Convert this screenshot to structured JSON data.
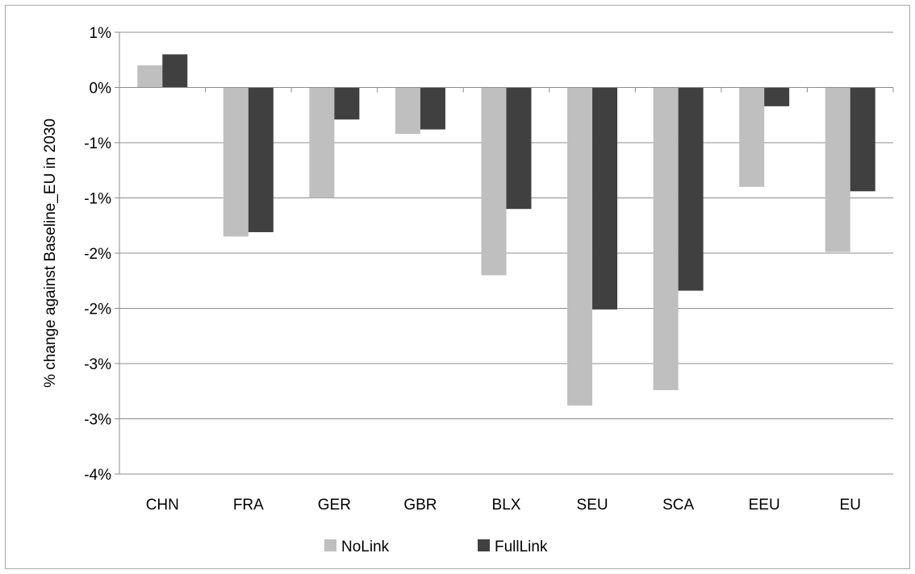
{
  "chart_data": {
    "type": "bar",
    "title": "",
    "xlabel": "",
    "ylabel": "% change against Baseline_EU in 2030",
    "categories": [
      "CHN",
      "FRA",
      "GER",
      "GBR",
      "BLX",
      "SEU",
      "SCA",
      "EEU",
      "EU"
    ],
    "series": [
      {
        "name": "NoLink",
        "color": "#bfbfbf",
        "values": [
          0.2,
          -1.35,
          -1.0,
          -0.42,
          -1.7,
          -2.88,
          -2.74,
          -0.9,
          -1.49
        ]
      },
      {
        "name": "FullLink",
        "color": "#404040",
        "values": [
          0.3,
          -1.31,
          -0.29,
          -0.38,
          -1.1,
          -2.01,
          -1.84,
          -0.17,
          -0.94
        ]
      }
    ],
    "ylim": [
      -3.5,
      0.5
    ],
    "yticks": [
      0.5,
      0.0,
      -0.5,
      -1.0,
      -1.5,
      -2.0,
      -2.5,
      -3.0,
      -3.5
    ],
    "ytick_labels": [
      "1%",
      "0%",
      "-1%",
      "-1%",
      "-2%",
      "-2%",
      "-3%",
      "-3%",
      "-4%"
    ],
    "grid": true,
    "legend_position": "bottom"
  }
}
